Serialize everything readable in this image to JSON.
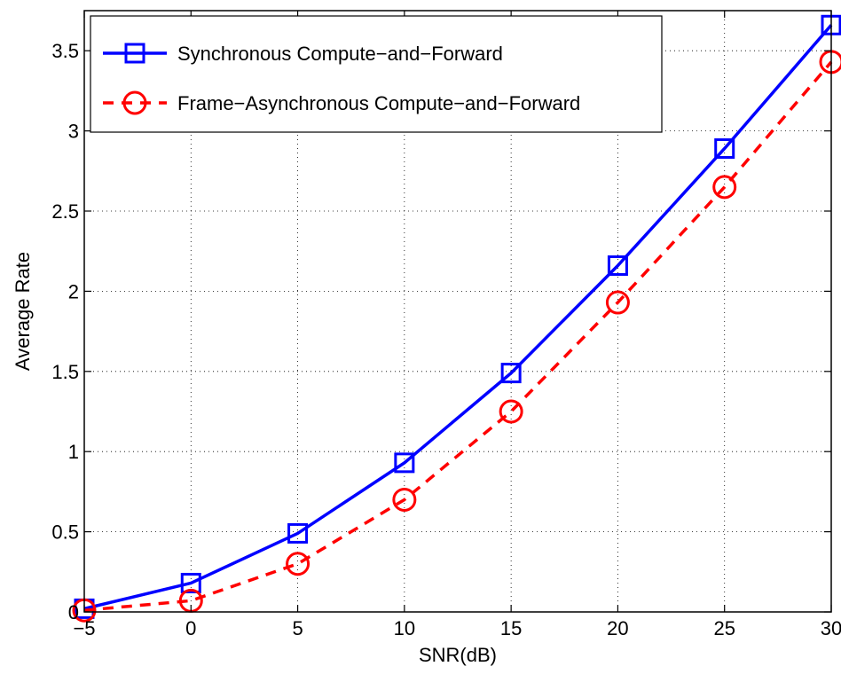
{
  "chart_data": {
    "type": "line",
    "title": "",
    "xlabel": "SNR(dB)",
    "ylabel": "Average Rate",
    "x": [
      -5,
      0,
      5,
      10,
      15,
      20,
      25,
      30
    ],
    "xlim": [
      -5,
      30
    ],
    "ylim": [
      0,
      3.75
    ],
    "xticks": [
      -5,
      0,
      5,
      10,
      15,
      20,
      25,
      30
    ],
    "yticks": [
      0,
      0.5,
      1,
      1.5,
      2,
      2.5,
      3,
      3.5
    ],
    "xtick_labels": [
      "−5",
      "0",
      "5",
      "10",
      "15",
      "20",
      "25",
      "30"
    ],
    "ytick_labels": [
      "0",
      "0.5",
      "1",
      "1.5",
      "2",
      "2.5",
      "3",
      "3.5"
    ],
    "grid": true,
    "legend_position": "top-left",
    "series": [
      {
        "name": "Synchronous Compute−and−Forward",
        "values": [
          0.02,
          0.18,
          0.49,
          0.93,
          1.49,
          2.16,
          2.89,
          3.66
        ],
        "color": "#0000ff",
        "line_style": "solid",
        "marker": "square"
      },
      {
        "name": "Frame−Asynchronous Compute−and−Forward",
        "values": [
          0.01,
          0.07,
          0.3,
          0.7,
          1.25,
          1.93,
          2.65,
          3.43
        ],
        "color": "#ff0000",
        "line_style": "dashed",
        "marker": "circle"
      }
    ]
  }
}
